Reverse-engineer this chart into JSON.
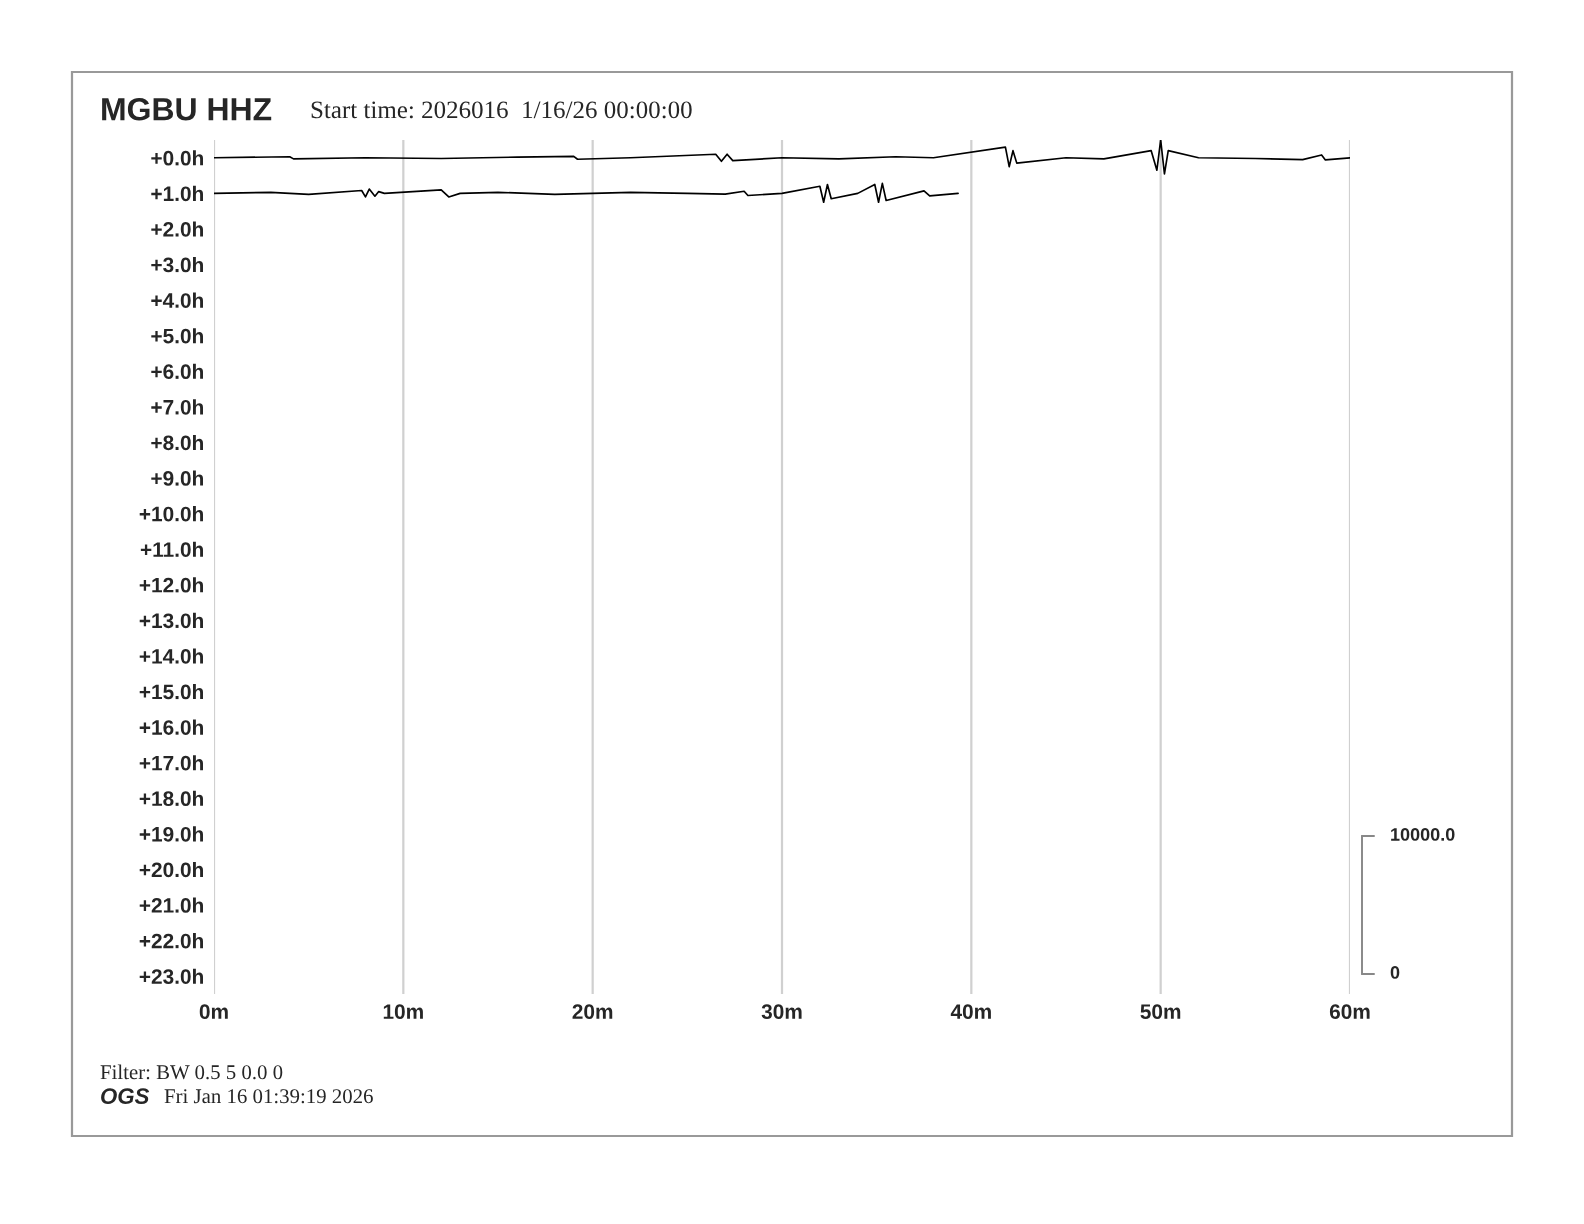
{
  "chart_data": {
    "type": "line",
    "title": "MGBU HHZ",
    "subtitle": "Start time: 2026016  1/16/26 00:00:00",
    "annotations": [
      "10000.0",
      "0",
      "Filter: BW 0.5 5 0.0 0",
      "OGS",
      "Fri Jan 16 01:39:19 2026"
    ],
    "series": [
      {
        "color": "#000000",
        "x": [
          0,
          4,
          4.2,
          8,
          12,
          16,
          19,
          19.2,
          22,
          26.5,
          26.8,
          27.1,
          27.4,
          30,
          33,
          36,
          38,
          41.8,
          42.0,
          42.2,
          42.4,
          45,
          47,
          49.5,
          49.8,
          50.0,
          50.2,
          50.4,
          52,
          55,
          57.5,
          58.5,
          58.7,
          60
        ],
        "values": [
          0,
          -0.03,
          0.03,
          0,
          0.02,
          -0.02,
          -0.04,
          0.04,
          0,
          -0.1,
          0.1,
          -0.1,
          0.08,
          0,
          0.03,
          -0.03,
          0,
          -0.3,
          0.25,
          -0.2,
          0.15,
          0,
          0.03,
          -0.2,
          0.35,
          -0.5,
          0.45,
          -0.2,
          0,
          0.02,
          0.05,
          -0.08,
          0.06,
          0
        ]
      },
      {
        "color": "#000000",
        "x": [
          0,
          3,
          5,
          7.8,
          8.0,
          8.2,
          8.5,
          8.7,
          9,
          12,
          12.4,
          13,
          15,
          18,
          20,
          22,
          25,
          27,
          28,
          28.2,
          30,
          32.0,
          32.2,
          32.4,
          32.6,
          34,
          34.9,
          35.1,
          35.3,
          35.5,
          37.5,
          37.8,
          39.3
        ],
        "values": [
          1,
          0.97,
          1.03,
          0.92,
          1.1,
          0.88,
          1.08,
          0.95,
          1,
          0.9,
          1.1,
          1,
          0.97,
          1.03,
          1,
          0.97,
          1,
          1.02,
          0.94,
          1.06,
          1,
          0.8,
          1.25,
          0.75,
          1.15,
          1,
          0.75,
          1.25,
          0.72,
          1.2,
          0.93,
          1.07,
          1
        ]
      }
    ],
    "xlim": [
      0,
      60
    ],
    "xticks": [
      {
        "value": 0,
        "label": "0m"
      },
      {
        "value": 10,
        "label": "10m"
      },
      {
        "value": 20,
        "label": "20m"
      },
      {
        "value": 30,
        "label": "30m"
      },
      {
        "value": 40,
        "label": "40m"
      },
      {
        "value": 50,
        "label": "50m"
      },
      {
        "value": 60,
        "label": "60m"
      }
    ],
    "ylim": [
      23.5,
      -0.5
    ],
    "yticks": [
      {
        "value": 0,
        "label": "+0.0h"
      },
      {
        "value": 1,
        "label": "+1.0h"
      },
      {
        "value": 2,
        "label": "+2.0h"
      },
      {
        "value": 3,
        "label": "+3.0h"
      },
      {
        "value": 4,
        "label": "+4.0h"
      },
      {
        "value": 5,
        "label": "+5.0h"
      },
      {
        "value": 6,
        "label": "+6.0h"
      },
      {
        "value": 7,
        "label": "+7.0h"
      },
      {
        "value": 8,
        "label": "+8.0h"
      },
      {
        "value": 9,
        "label": "+9.0h"
      },
      {
        "value": 10,
        "label": "+10.0h"
      },
      {
        "value": 11,
        "label": "+11.0h"
      },
      {
        "value": 12,
        "label": "+12.0h"
      },
      {
        "value": 13,
        "label": "+13.0h"
      },
      {
        "value": 14,
        "label": "+14.0h"
      },
      {
        "value": 15,
        "label": "+15.0h"
      },
      {
        "value": 16,
        "label": "+16.0h"
      },
      {
        "value": 17,
        "label": "+17.0h"
      },
      {
        "value": 18,
        "label": "+18.0h"
      },
      {
        "value": 19,
        "label": "+19.0h"
      },
      {
        "value": 20,
        "label": "+20.0h"
      },
      {
        "value": 21,
        "label": "+21.0h"
      },
      {
        "value": 22,
        "label": "+22.0h"
      },
      {
        "value": 23,
        "label": "+23.0h"
      }
    ],
    "grid": "x",
    "marker": "none",
    "line_style": "solid"
  }
}
